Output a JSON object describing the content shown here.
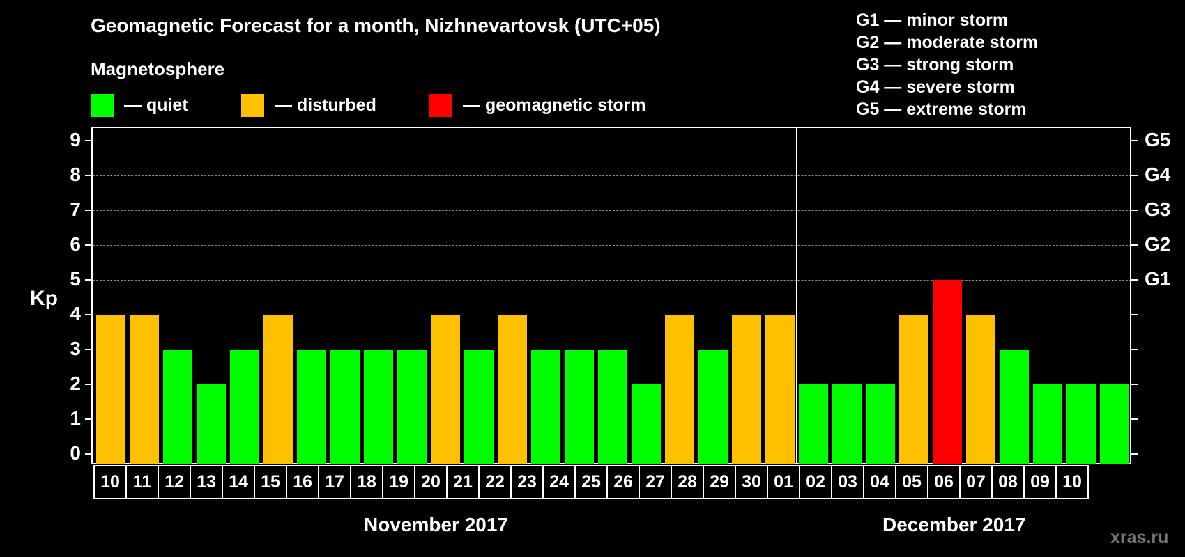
{
  "header": {
    "title": "Geomagnetic Forecast for a month, Nizhnevartovsk (UTC+05)",
    "subtitle": "Magnetosphere"
  },
  "legend": [
    {
      "label": "— quiet",
      "color": "#00ff00"
    },
    {
      "label": "— disturbed",
      "color": "#ffc000"
    },
    {
      "label": "— geomagnetic storm",
      "color": "#ff0000"
    }
  ],
  "storm_scale": [
    "G1 — minor storm",
    "G2 — moderate storm",
    "G3 — strong storm",
    "G4 — severe storm",
    "G5 — extreme storm"
  ],
  "axes": {
    "ylabel": "Kp",
    "y_ticks": [
      "0",
      "1",
      "2",
      "3",
      "4",
      "5",
      "6",
      "7",
      "8",
      "9"
    ],
    "g_ticks": [
      {
        "label": "G1",
        "kp": 5
      },
      {
        "label": "G2",
        "kp": 6
      },
      {
        "label": "G3",
        "kp": 7
      },
      {
        "label": "G4",
        "kp": 8
      },
      {
        "label": "G5",
        "kp": 9
      }
    ]
  },
  "months": {
    "november": "November 2017",
    "december": "December 2017"
  },
  "watermark": "xras.ru",
  "colors": {
    "quiet": "#00ff00",
    "disturbed": "#ffc000",
    "storm": "#ff0000",
    "background": "#000000",
    "grid": "#8a8a8a"
  },
  "chart_data": {
    "type": "bar",
    "title": "Geomagnetic Forecast for a month, Nizhnevartovsk (UTC+05)",
    "subtitle": "Magnetosphere",
    "xlabel": "November 2017 / December 2017",
    "ylabel": "Kp",
    "ylim": [
      0,
      9
    ],
    "grid": "dashed horizontal at Kp 5–9",
    "legend_position": "top",
    "categories": [
      "10",
      "11",
      "12",
      "13",
      "14",
      "15",
      "16",
      "17",
      "18",
      "19",
      "20",
      "21",
      "22",
      "23",
      "24",
      "25",
      "26",
      "27",
      "28",
      "29",
      "30",
      "01",
      "02",
      "03",
      "04",
      "05",
      "06",
      "07",
      "08",
      "09",
      "10"
    ],
    "months": [
      "Nov",
      "Nov",
      "Nov",
      "Nov",
      "Nov",
      "Nov",
      "Nov",
      "Nov",
      "Nov",
      "Nov",
      "Nov",
      "Nov",
      "Nov",
      "Nov",
      "Nov",
      "Nov",
      "Nov",
      "Nov",
      "Nov",
      "Nov",
      "Nov",
      "Dec",
      "Dec",
      "Dec",
      "Dec",
      "Dec",
      "Dec",
      "Dec",
      "Dec",
      "Dec",
      "Dec"
    ],
    "values": [
      4,
      4,
      3,
      2,
      3,
      4,
      3,
      3,
      3,
      3,
      4,
      3,
      4,
      3,
      3,
      3,
      2,
      4,
      3,
      4,
      4,
      2,
      2,
      2,
      4,
      5,
      4,
      3,
      2,
      2,
      2
    ],
    "status": [
      "disturbed",
      "disturbed",
      "quiet",
      "quiet",
      "quiet",
      "disturbed",
      "quiet",
      "quiet",
      "quiet",
      "quiet",
      "disturbed",
      "quiet",
      "disturbed",
      "quiet",
      "quiet",
      "quiet",
      "quiet",
      "disturbed",
      "quiet",
      "disturbed",
      "disturbed",
      "quiet",
      "quiet",
      "quiet",
      "disturbed",
      "storm",
      "disturbed",
      "quiet",
      "quiet",
      "quiet",
      "quiet"
    ],
    "right_axis": {
      "G1": 5,
      "G2": 6,
      "G3": 7,
      "G4": 8,
      "G5": 9
    }
  }
}
